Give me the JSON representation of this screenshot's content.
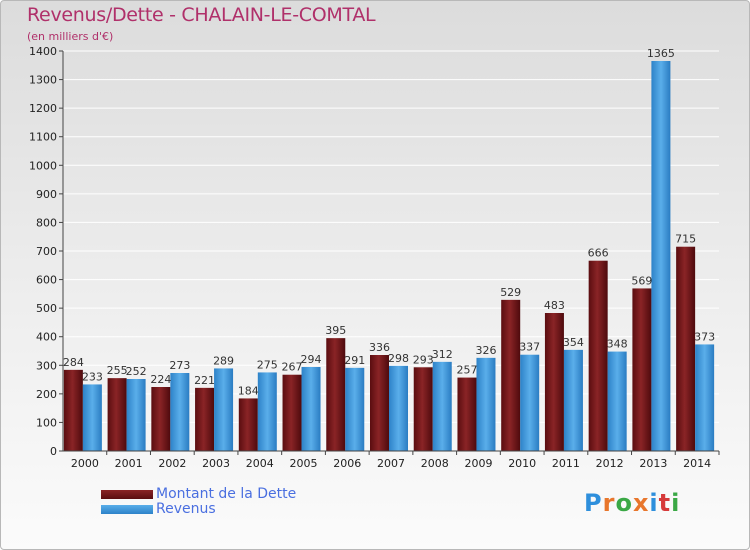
{
  "title": "Revenus/Dette - CHALAIN-LE-COMTAL",
  "subtitle": "(en milliers d'€)",
  "brand": "Proxiti",
  "colors": {
    "debt": "#7a1a1c",
    "revenue": "#3f9be0",
    "axis": "#444444",
    "grid": "#ffffff"
  },
  "chart_data": {
    "type": "bar",
    "categories": [
      "2000",
      "2001",
      "2002",
      "2003",
      "2004",
      "2005",
      "2006",
      "2007",
      "2008",
      "2009",
      "2010",
      "2011",
      "2012",
      "2013",
      "2014"
    ],
    "series": [
      {
        "name": "Montant de la Dette",
        "values": [
          284,
          255,
          224,
          221,
          184,
          267,
          395,
          336,
          293,
          257,
          529,
          483,
          666,
          569,
          715
        ]
      },
      {
        "name": "Revenus",
        "values": [
          233,
          252,
          273,
          289,
          275,
          294,
          291,
          298,
          312,
          326,
          337,
          354,
          348,
          1365,
          373
        ]
      }
    ],
    "ylim": [
      0,
      1400
    ],
    "yticks": [
      0,
      100,
      200,
      300,
      400,
      500,
      600,
      700,
      800,
      900,
      1000,
      1100,
      1200,
      1300,
      1400
    ],
    "grid": true,
    "legend_position": "bottom-left"
  }
}
